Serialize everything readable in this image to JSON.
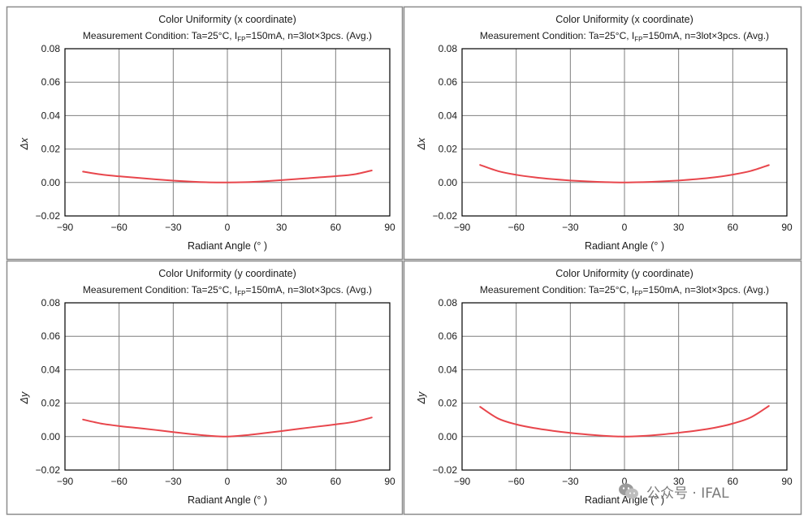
{
  "chart_data": [
    {
      "type": "line",
      "title": "Color Uniformity (x coordinate)",
      "condition": {
        "prefix": "Measurement Condition: Ta=25°C, I",
        "subscript": "FP",
        "suffix": "=150mA, n=3lot×3pcs. (Avg.)"
      },
      "xlabel": "Radiant Angle (° )",
      "ylabel": "Δx",
      "xlim": [
        -90,
        90
      ],
      "ylim": [
        -0.02,
        0.08
      ],
      "xticks": [
        "−90",
        "−60",
        "−30",
        "0",
        "30",
        "60",
        "90"
      ],
      "yticks": [
        "−0.02",
        "0.00",
        "0.02",
        "0.04",
        "0.06",
        "0.08"
      ],
      "grid": true,
      "series": [
        {
          "name": "Avg.",
          "color": "#e8464c",
          "x": [
            -80,
            -70,
            -60,
            -50,
            -40,
            -30,
            -20,
            -10,
            0,
            10,
            20,
            30,
            40,
            50,
            60,
            70,
            80
          ],
          "y": [
            0.0065,
            0.0048,
            0.0037,
            0.0028,
            0.0019,
            0.0011,
            0.0005,
            0.0001,
            0.0,
            0.0002,
            0.0007,
            0.0014,
            0.0022,
            0.003,
            0.0038,
            0.0048,
            0.0072
          ]
        }
      ]
    },
    {
      "type": "line",
      "title": "Color Uniformity (x coordinate)",
      "condition": {
        "prefix": "Measurement Condition: Ta=25°C, I",
        "subscript": "FP",
        "suffix": "=150mA, n=3lot×3pcs. (Avg.)"
      },
      "xlabel": "Radiant Angle (° )",
      "ylabel": "Δx",
      "xlim": [
        -90,
        90
      ],
      "ylim": [
        -0.02,
        0.08
      ],
      "xticks": [
        "−90",
        "−60",
        "−30",
        "0",
        "30",
        "60",
        "90"
      ],
      "yticks": [
        "−0.02",
        "0.00",
        "0.02",
        "0.04",
        "0.06",
        "0.08"
      ],
      "grid": true,
      "series": [
        {
          "name": "Avg.",
          "color": "#e8464c",
          "x": [
            -80,
            -70,
            -60,
            -50,
            -40,
            -30,
            -20,
            -10,
            0,
            10,
            20,
            30,
            40,
            50,
            60,
            70,
            80
          ],
          "y": [
            0.0105,
            0.0068,
            0.0046,
            0.0031,
            0.002,
            0.0012,
            0.0006,
            0.0002,
            0.0,
            0.0002,
            0.0006,
            0.0012,
            0.002,
            0.0031,
            0.0047,
            0.0069,
            0.0104
          ]
        }
      ]
    },
    {
      "type": "line",
      "title": "Color Uniformity (y coordinate)",
      "condition": {
        "prefix": "Measurement Condition: Ta=25°C, I",
        "subscript": "FP",
        "suffix": "=150mA, n=3lot×3pcs. (Avg.)"
      },
      "xlabel": "Radiant Angle (° )",
      "ylabel": "Δy",
      "xlim": [
        -90,
        90
      ],
      "ylim": [
        -0.02,
        0.08
      ],
      "xticks": [
        "−90",
        "−60",
        "−30",
        "0",
        "30",
        "60",
        "90"
      ],
      "yticks": [
        "−0.02",
        "0.00",
        "0.02",
        "0.04",
        "0.06",
        "0.08"
      ],
      "grid": true,
      "series": [
        {
          "name": "Avg.",
          "color": "#e8464c",
          "x": [
            -80,
            -70,
            -60,
            -50,
            -40,
            -30,
            -20,
            -10,
            0,
            10,
            20,
            30,
            40,
            50,
            60,
            70,
            80
          ],
          "y": [
            0.0102,
            0.0078,
            0.0063,
            0.0052,
            0.004,
            0.0027,
            0.0015,
            0.0005,
            0.0,
            0.0008,
            0.002,
            0.0033,
            0.0047,
            0.006,
            0.0073,
            0.0088,
            0.0114
          ]
        }
      ]
    },
    {
      "type": "line",
      "title": "Color Uniformity (y coordinate)",
      "condition": {
        "prefix": "Measurement Condition: Ta=25°C, I",
        "subscript": "FP",
        "suffix": "=150mA, n=3lot×3pcs. (Avg.)"
      },
      "xlabel": "Radiant Angle (° )",
      "ylabel": "Δy",
      "xlim": [
        -90,
        90
      ],
      "ylim": [
        -0.02,
        0.08
      ],
      "xticks": [
        "−90",
        "−60",
        "−30",
        "0",
        "30",
        "60",
        "90"
      ],
      "yticks": [
        "−0.02",
        "0.00",
        "0.02",
        "0.04",
        "0.06",
        "0.08"
      ],
      "grid": true,
      "series": [
        {
          "name": "Avg.",
          "color": "#e8464c",
          "x": [
            -80,
            -70,
            -60,
            -50,
            -40,
            -30,
            -20,
            -10,
            0,
            10,
            20,
            30,
            40,
            50,
            60,
            70,
            80
          ],
          "y": [
            0.0178,
            0.0108,
            0.0073,
            0.0051,
            0.0035,
            0.0022,
            0.0012,
            0.0004,
            0.0,
            0.0004,
            0.0012,
            0.0023,
            0.0036,
            0.0053,
            0.0078,
            0.0115,
            0.0183
          ]
        }
      ]
    }
  ],
  "watermark": {
    "text": "公众号 · IFAL"
  },
  "colors": {
    "grid": "#7f7f7f",
    "frame": "#000000",
    "panel_border": "#8c8c8c",
    "text": "#1a1a1a"
  }
}
